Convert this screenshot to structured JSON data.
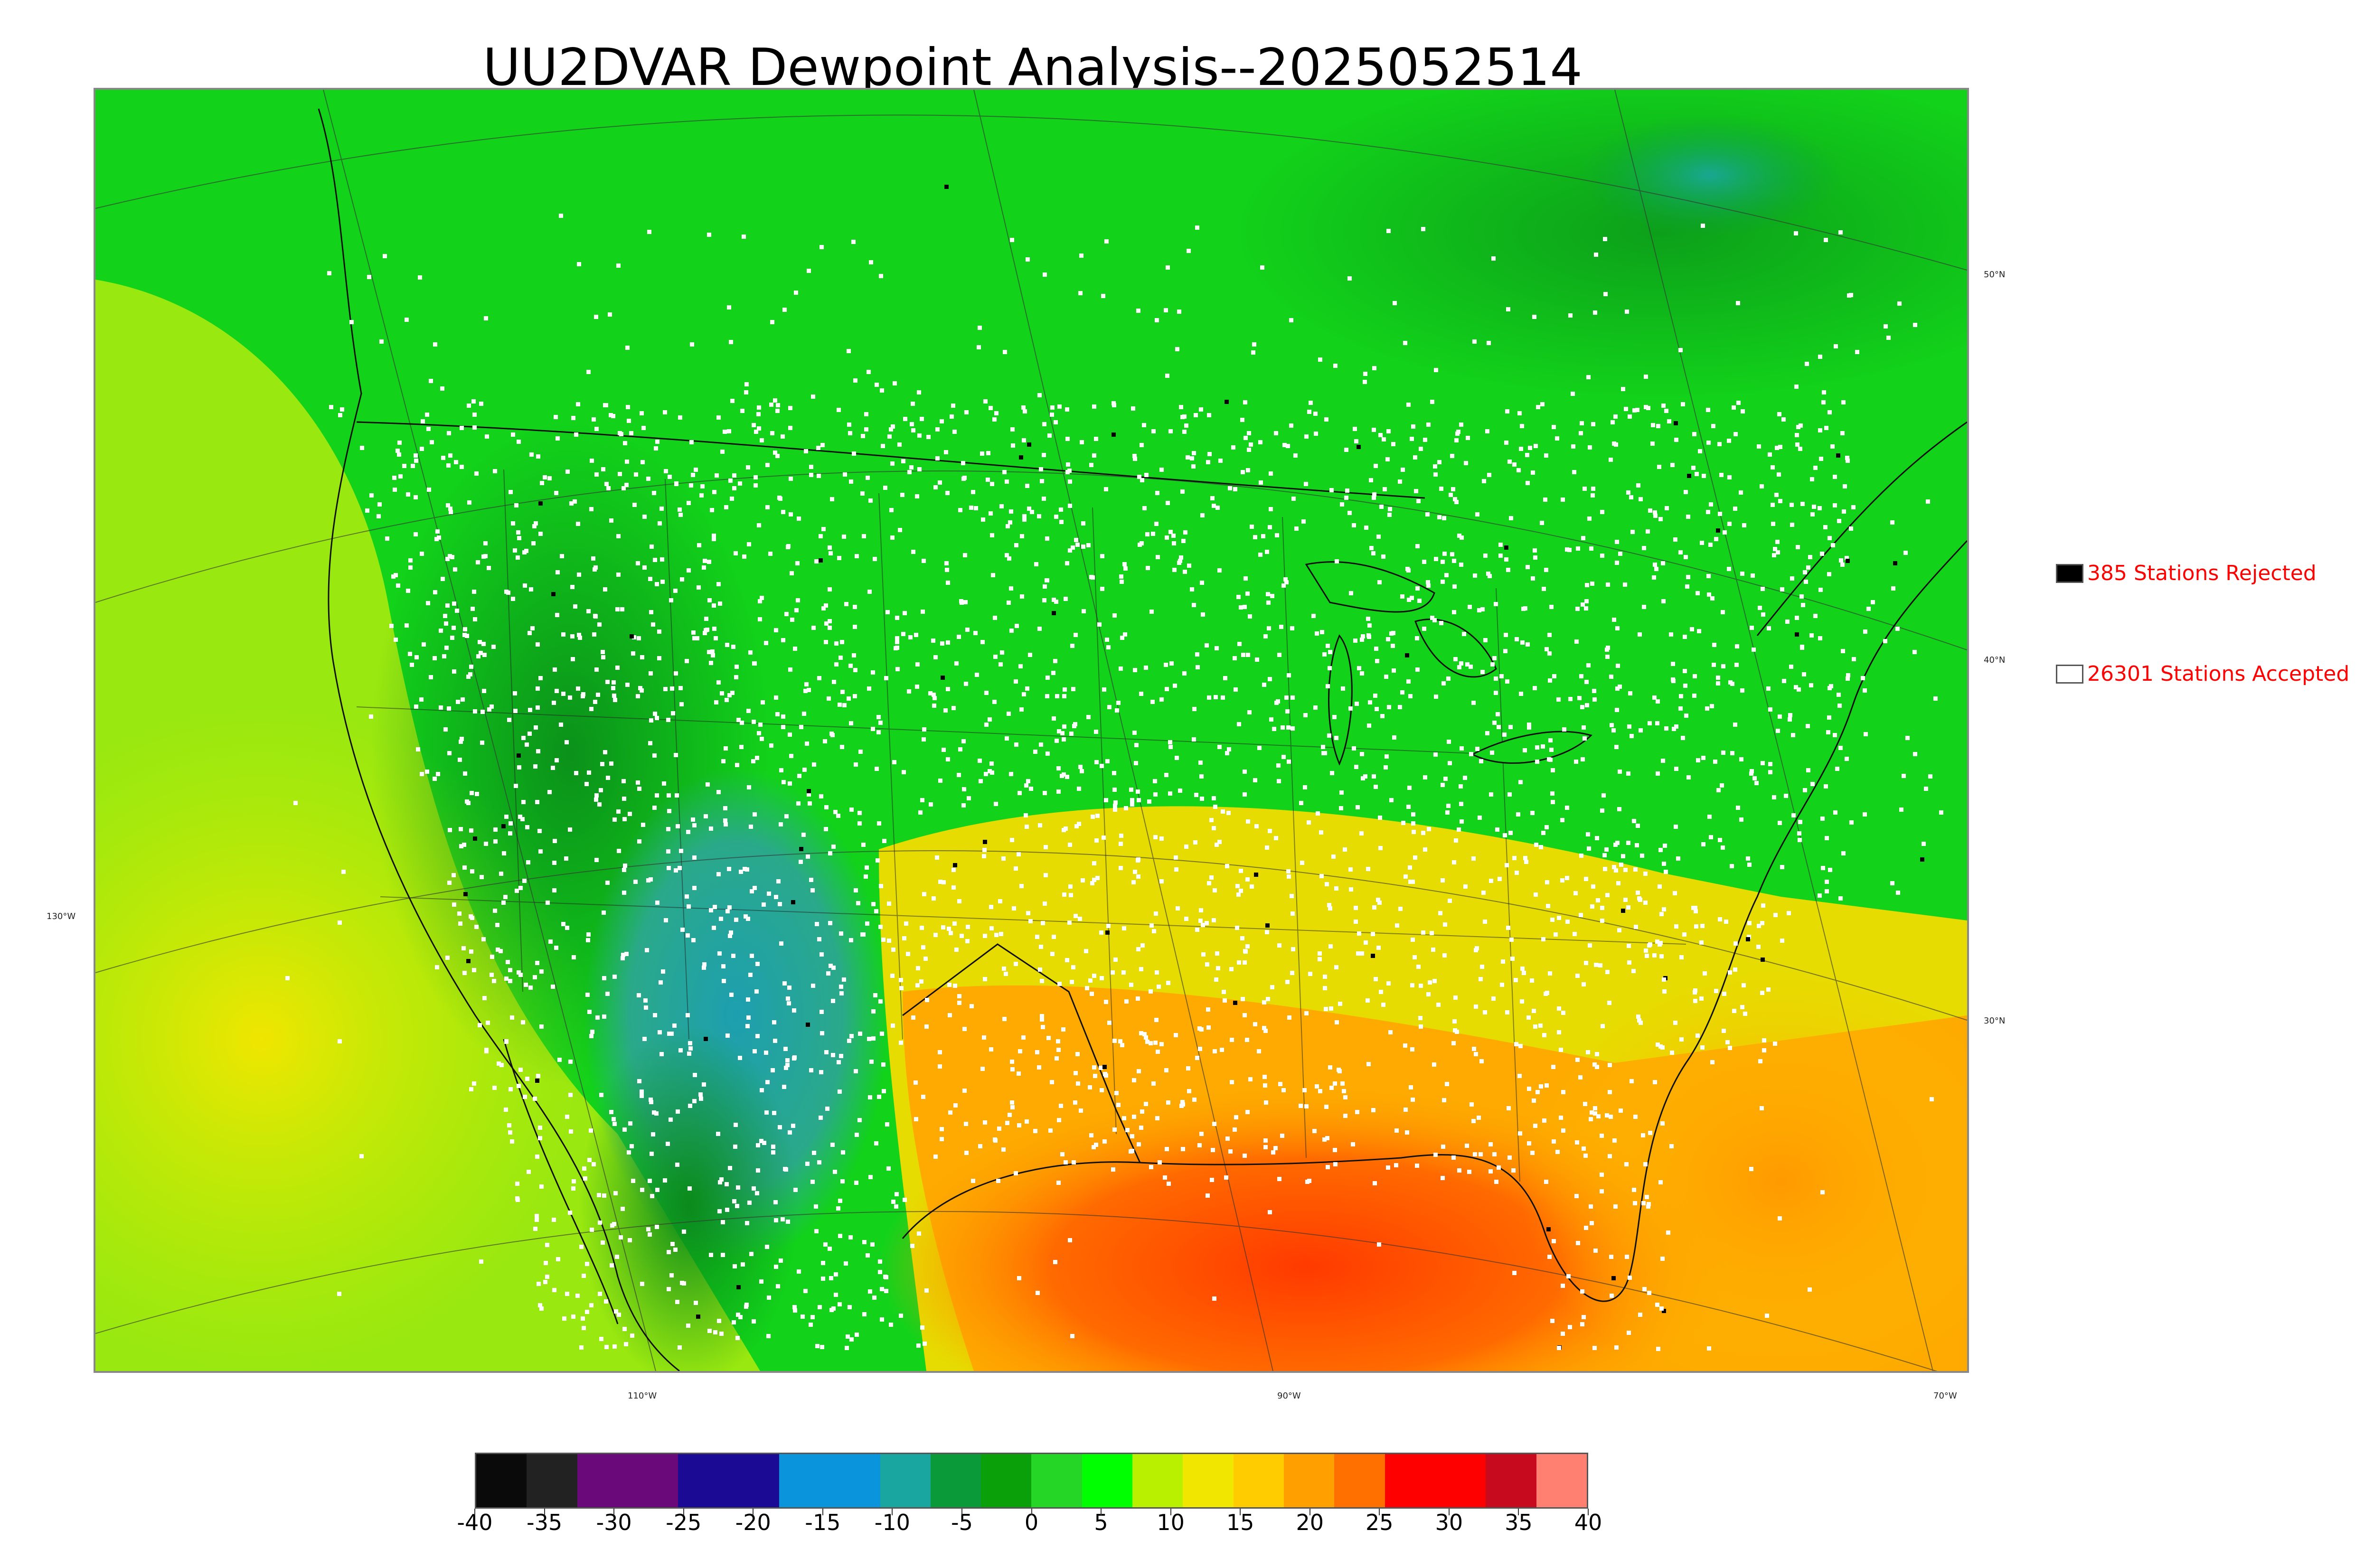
{
  "title": "UU2DVAR Dewpoint Analysis--2025052514",
  "legend": {
    "rejected_label": "385 Stations Rejected",
    "rejected_color": "#000000",
    "accepted_label": "26301 Stations Accepted",
    "accepted_color": "#ffffff",
    "text_color": "#ff0000"
  },
  "graticule": {
    "lat_labels": [
      "50°N",
      "40°N",
      "30°N"
    ],
    "lon_labels": [
      "130°W",
      "110°W",
      "90°W",
      "70°W"
    ]
  },
  "colorbar": {
    "ticks": [
      "-40",
      "-35",
      "-30",
      "-25",
      "-20",
      "-15",
      "-10",
      "-5",
      "0",
      "5",
      "10",
      "15",
      "20",
      "25",
      "30",
      "35",
      "40"
    ],
    "colors": [
      "#0a0a0a",
      "#222222",
      "#6a0a7a",
      "#6a0a7a",
      "#1b0a94",
      "#1b0a94",
      "#0a94dc",
      "#0a94dc",
      "#1aa6a0",
      "#0a9a3a",
      "#0aa00a",
      "#26d626",
      "#00ff00",
      "#b8f000",
      "#f0e600",
      "#ffcc00",
      "#ffa000",
      "#ff7000",
      "#ff0000",
      "#ff0000",
      "#c80a1e",
      "#ff8070"
    ]
  }
}
